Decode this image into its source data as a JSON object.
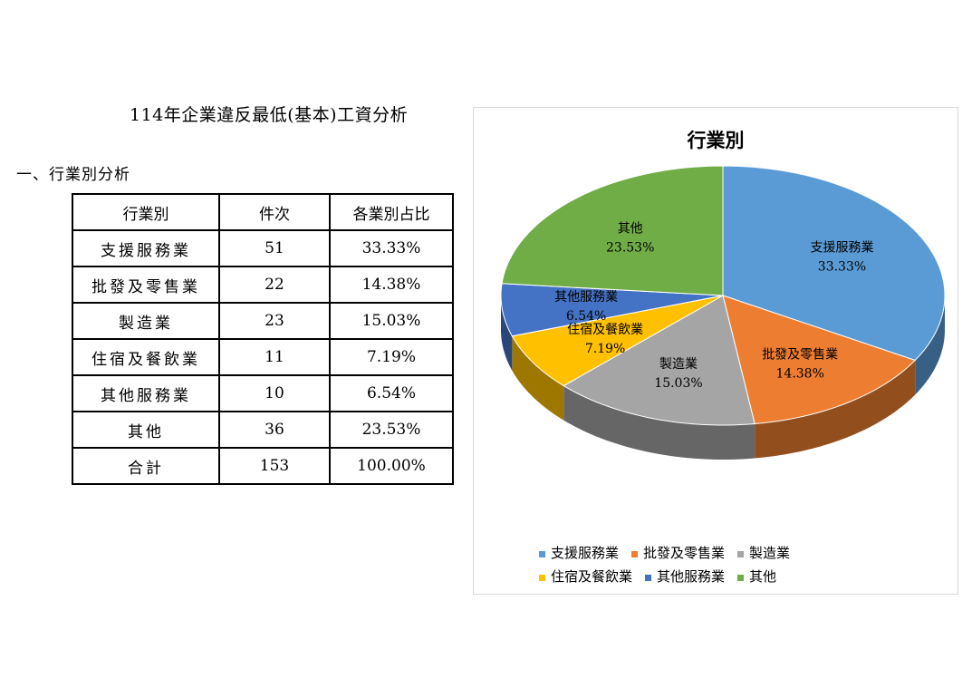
{
  "document": {
    "title": "114年企業違反最低(基本)工資分析",
    "section_heading": "一、行業別分析"
  },
  "table": {
    "headers": [
      "行業別",
      "件次",
      "各業別占比"
    ],
    "rows": [
      [
        "支援服務業",
        "51",
        "33.33%"
      ],
      [
        "批發及零售業",
        "22",
        "14.38%"
      ],
      [
        "製造業",
        "23",
        "15.03%"
      ],
      [
        "住宿及餐飲業",
        "11",
        "7.19%"
      ],
      [
        "其他服務業",
        "10",
        "6.54%"
      ],
      [
        "其他",
        "36",
        "23.53%"
      ],
      [
        "合計",
        "153",
        "100.00%"
      ]
    ]
  },
  "chart_data": {
    "type": "pie",
    "title": "行業別",
    "legend_position": "bottom",
    "slices": [
      {
        "name": "支援服務業",
        "value": 33.33,
        "label": "33.33%",
        "color": "#5b9bd5"
      },
      {
        "name": "批發及零售業",
        "value": 14.38,
        "label": "14.38%",
        "color": "#ed7d31"
      },
      {
        "name": "製造業",
        "value": 15.03,
        "label": "15.03%",
        "color": "#a5a5a5"
      },
      {
        "name": "住宿及餐飲業",
        "value": 7.19,
        "label": "7.19%",
        "color": "#ffc000"
      },
      {
        "name": "其他服務業",
        "value": 6.54,
        "label": "6.54%",
        "color": "#4472c4"
      },
      {
        "name": "其他",
        "value": 23.53,
        "label": "23.53%",
        "color": "#70ad47"
      }
    ]
  }
}
